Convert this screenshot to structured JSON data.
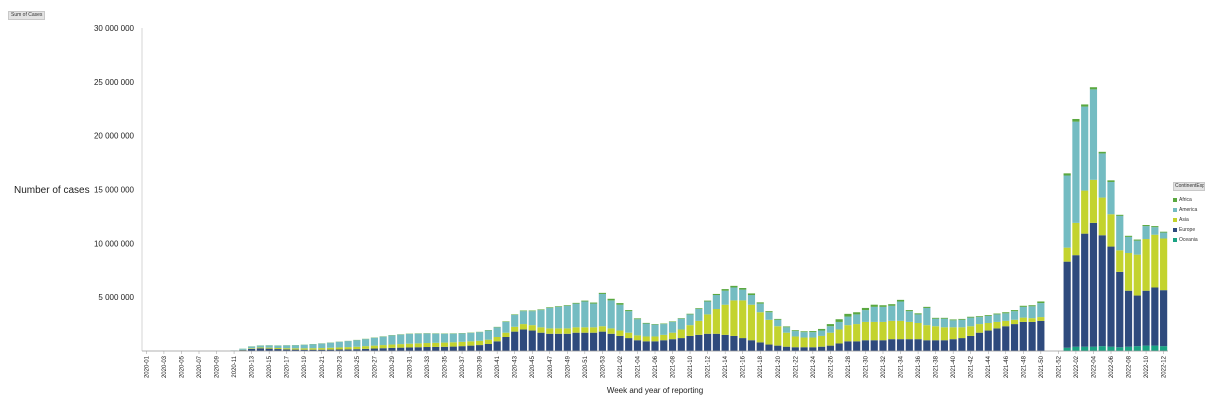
{
  "field_button": "Sum of Cases",
  "legend_title": "ContinentExp",
  "chart_data": {
    "type": "bar",
    "stacked": true,
    "xlabel": "Week and year of reporting",
    "ylabel": "Number of cases",
    "ylim": [
      0,
      30000000
    ],
    "yticks": [
      {
        "value": 5000000,
        "label": "5 000 000"
      },
      {
        "value": 10000000,
        "label": "10 000 000"
      },
      {
        "value": 15000000,
        "label": "15 000 000"
      },
      {
        "value": 20000000,
        "label": "20 000 000"
      },
      {
        "value": 25000000,
        "label": "25 000 000"
      },
      {
        "value": 30000000,
        "label": "30 000 000"
      }
    ],
    "categories": [
      "2020-01",
      "2020-02",
      "2020-03",
      "2020-04",
      "2020-05",
      "2020-06",
      "2020-07",
      "2020-08",
      "2020-09",
      "2020-10",
      "2020-11",
      "2020-12",
      "2020-13",
      "2020-14",
      "2020-15",
      "2020-16",
      "2020-17",
      "2020-18",
      "2020-19",
      "2020-20",
      "2020-21",
      "2020-22",
      "2020-23",
      "2020-24",
      "2020-25",
      "2020-26",
      "2020-27",
      "2020-28",
      "2020-29",
      "2020-30",
      "2020-31",
      "2020-32",
      "2020-33",
      "2020-34",
      "2020-35",
      "2020-36",
      "2020-37",
      "2020-38",
      "2020-39",
      "2020-40",
      "2020-41",
      "2020-42",
      "2020-43",
      "2020-44",
      "2020-45",
      "2020-46",
      "2020-47",
      "2020-48",
      "2020-49",
      "2020-50",
      "2020-51",
      "2020-52",
      "2020-53",
      "2021-01",
      "2021-02",
      "2021-03",
      "2021-04",
      "2021-05",
      "2021-06",
      "2021-07",
      "2021-08",
      "2021-09",
      "2021-10",
      "2021-11",
      "2021-12",
      "2021-13",
      "2021-14",
      "2021-15",
      "2021-16",
      "2021-17",
      "2021-18",
      "2021-19",
      "2021-20",
      "2021-21",
      "2021-22",
      "2021-23",
      "2021-24",
      "2021-25",
      "2021-26",
      "2021-27",
      "2021-28",
      "2021-29",
      "2021-30",
      "2021-31",
      "2021-32",
      "2021-33",
      "2021-34",
      "2021-35",
      "2021-36",
      "2021-37",
      "2021-38",
      "2021-39",
      "2021-40",
      "2021-41",
      "2021-42",
      "2021-43",
      "2021-44",
      "2021-45",
      "2021-46",
      "2021-47",
      "2021-48",
      "2021-49",
      "2021-50",
      "2021-51",
      "2021-52",
      "2022-01",
      "2022-02",
      "2022-03",
      "2022-04",
      "2022-05",
      "2022-06",
      "2022-07",
      "2022-08",
      "2022-09",
      "2022-10",
      "2022-11",
      "2022-12"
    ],
    "x_tick_labels": [
      "2020-01",
      "2020-03",
      "2020-05",
      "2020-07",
      "2020-09",
      "2020-11",
      "2020-13",
      "2020-15",
      "2020-17",
      "2020-19",
      "2020-21",
      "2020-23",
      "2020-25",
      "2020-27",
      "2020-29",
      "2020-31",
      "2020-33",
      "2020-35",
      "2020-37",
      "2020-39",
      "2020-41",
      "2020-43",
      "2020-45",
      "2020-47",
      "2020-49",
      "2020-51",
      "2020-53",
      "2021-02",
      "2021-04",
      "2021-06",
      "2021-08",
      "2021-10",
      "2021-12",
      "2021-14",
      "2021-16",
      "2021-18",
      "2021-20",
      "2021-22",
      "2021-24",
      "2021-26",
      "2021-28",
      "2021-30",
      "2021-32",
      "2021-34",
      "2021-36",
      "2021-38",
      "2021-40",
      "2021-42",
      "2021-44",
      "2021-46",
      "2021-48",
      "2021-50",
      "2021-52",
      "2022-02",
      "2022-04",
      "2022-06",
      "2022-08",
      "2022-10",
      "2022-12"
    ],
    "series": [
      {
        "name": "Oceania",
        "color": "#1aa383",
        "values": [
          0,
          0,
          0,
          0,
          0,
          0,
          0,
          0,
          0,
          0,
          0,
          0,
          0,
          0,
          0,
          0,
          0,
          0,
          0,
          0,
          0,
          0,
          0,
          0,
          0,
          0,
          0,
          0,
          0,
          0,
          0,
          0,
          0,
          0,
          0,
          0,
          0,
          0,
          0,
          0,
          0,
          0,
          0,
          0,
          0,
          0,
          0,
          0,
          0,
          0,
          0,
          0,
          0,
          0,
          0,
          0,
          0,
          0,
          0,
          0,
          0,
          0,
          0,
          0,
          0,
          0,
          0,
          0,
          0,
          0,
          0,
          0,
          0,
          0,
          0,
          0,
          0,
          0,
          0,
          0,
          0,
          0,
          0,
          0,
          0,
          0,
          0,
          0,
          0,
          0,
          0,
          0,
          0,
          0,
          0,
          0,
          0,
          0,
          0,
          0,
          0,
          0,
          0,
          0,
          0,
          300000,
          400000,
          400000,
          400000,
          450000,
          400000,
          350000,
          400000,
          450000,
          500000,
          500000,
          450000
        ]
      },
      {
        "name": "Europe",
        "color": "#2e4a7d",
        "values": [
          0,
          0,
          0,
          0,
          0,
          0,
          0,
          0,
          0,
          0,
          20000,
          80000,
          200000,
          250000,
          220000,
          180000,
          150000,
          130000,
          120000,
          120000,
          120000,
          130000,
          140000,
          150000,
          170000,
          200000,
          230000,
          260000,
          290000,
          310000,
          330000,
          350000,
          370000,
          380000,
          390000,
          410000,
          450000,
          500000,
          550000,
          650000,
          900000,
          1300000,
          1800000,
          2000000,
          1900000,
          1700000,
          1600000,
          1600000,
          1600000,
          1700000,
          1700000,
          1700000,
          1800000,
          1600000,
          1400000,
          1200000,
          1000000,
          900000,
          900000,
          1000000,
          1100000,
          1200000,
          1400000,
          1500000,
          1600000,
          1600000,
          1500000,
          1400000,
          1200000,
          1000000,
          800000,
          600000,
          500000,
          400000,
          350000,
          350000,
          350000,
          400000,
          500000,
          700000,
          900000,
          900000,
          1000000,
          1000000,
          1000000,
          1100000,
          1100000,
          1100000,
          1100000,
          1000000,
          1000000,
          1000000,
          1100000,
          1200000,
          1400000,
          1700000,
          1900000,
          2100000,
          2300000,
          2500000,
          2700000,
          2700000,
          2800000,
          0,
          0,
          8000000,
          8500000,
          10500000,
          11500000,
          10300000,
          9300000,
          7000000,
          5200000,
          4700000,
          5100000,
          5400000,
          5200000
        ]
      },
      {
        "name": "Asia",
        "color": "#c3d32e",
        "values": [
          0,
          0,
          0,
          0,
          0,
          0,
          0,
          0,
          0,
          0,
          10000,
          30000,
          60000,
          80000,
          90000,
          100000,
          110000,
          120000,
          130000,
          140000,
          150000,
          170000,
          190000,
          210000,
          230000,
          250000,
          270000,
          290000,
          310000,
          330000,
          350000,
          360000,
          370000,
          380000,
          390000,
          400000,
          400000,
          400000,
          400000,
          400000,
          400000,
          400000,
          450000,
          500000,
          500000,
          500000,
          500000,
          500000,
          500000,
          500000,
          500000,
          500000,
          500000,
          500000,
          500000,
          500000,
          450000,
          450000,
          450000,
          500000,
          600000,
          800000,
          1000000,
          1300000,
          1800000,
          2300000,
          2800000,
          3300000,
          3500000,
          3300000,
          2800000,
          2300000,
          1800000,
          1300000,
          1000000,
          900000,
          900000,
          1000000,
          1200000,
          1300000,
          1500000,
          1600000,
          1700000,
          1700000,
          1700000,
          1700000,
          1700000,
          1600000,
          1500000,
          1400000,
          1300000,
          1200000,
          1100000,
          1000000,
          900000,
          800000,
          700000,
          600000,
          500000,
          400000,
          400000,
          350000,
          350000,
          0,
          0,
          1300000,
          3000000,
          4000000,
          4000000,
          3500000,
          3000000,
          2000000,
          3500000,
          3800000,
          4800000,
          4900000,
          4800000
        ]
      },
      {
        "name": "America",
        "color": "#74bcc2",
        "values": [
          0,
          0,
          0,
          0,
          0,
          0,
          0,
          0,
          0,
          0,
          20000,
          100000,
          150000,
          170000,
          200000,
          220000,
          250000,
          280000,
          320000,
          370000,
          420000,
          470000,
          520000,
          560000,
          600000,
          650000,
          720000,
          780000,
          840000,
          880000,
          900000,
          900000,
          880000,
          850000,
          820000,
          800000,
          780000,
          780000,
          800000,
          850000,
          900000,
          1000000,
          1100000,
          1200000,
          1300000,
          1600000,
          1900000,
          2000000,
          2100000,
          2200000,
          2400000,
          2200000,
          3000000,
          2600000,
          2400000,
          2000000,
          1500000,
          1200000,
          1100000,
          1000000,
          1000000,
          1000000,
          1000000,
          1100000,
          1200000,
          1300000,
          1300000,
          1200000,
          1000000,
          900000,
          800000,
          700000,
          600000,
          500000,
          500000,
          500000,
          500000,
          500000,
          600000,
          700000,
          800000,
          900000,
          1100000,
          1400000,
          1400000,
          1400000,
          1800000,
          1000000,
          800000,
          1600000,
          700000,
          800000,
          650000,
          700000,
          800000,
          650000,
          650000,
          700000,
          700000,
          800000,
          1000000,
          1100000,
          1300000,
          0,
          0,
          6700000,
          9400000,
          7800000,
          8400000,
          4100000,
          3000000,
          3200000,
          1500000,
          1300000,
          1200000,
          700000,
          550000
        ]
      },
      {
        "name": "Africa",
        "color": "#5aa840",
        "values": [
          0,
          0,
          0,
          0,
          0,
          0,
          0,
          0,
          0,
          0,
          0,
          10000,
          20000,
          20000,
          20000,
          20000,
          20000,
          20000,
          20000,
          20000,
          20000,
          20000,
          20000,
          20000,
          30000,
          30000,
          30000,
          30000,
          30000,
          30000,
          30000,
          30000,
          30000,
          30000,
          30000,
          30000,
          30000,
          30000,
          30000,
          40000,
          40000,
          50000,
          50000,
          60000,
          60000,
          60000,
          60000,
          60000,
          60000,
          70000,
          80000,
          100000,
          100000,
          150000,
          150000,
          100000,
          80000,
          60000,
          50000,
          50000,
          50000,
          50000,
          60000,
          70000,
          80000,
          100000,
          150000,
          150000,
          150000,
          150000,
          120000,
          100000,
          80000,
          80000,
          80000,
          80000,
          100000,
          150000,
          200000,
          250000,
          250000,
          200000,
          200000,
          200000,
          150000,
          150000,
          150000,
          100000,
          100000,
          100000,
          80000,
          80000,
          80000,
          80000,
          80000,
          80000,
          80000,
          80000,
          100000,
          100000,
          100000,
          100000,
          150000,
          0,
          0,
          200000,
          250000,
          200000,
          200000,
          150000,
          150000,
          100000,
          100000,
          100000,
          100000,
          100000,
          80000
        ]
      }
    ],
    "legend_order": [
      "Africa",
      "America",
      "Asia",
      "Europe",
      "Oceania"
    ],
    "legend_position": "right"
  }
}
